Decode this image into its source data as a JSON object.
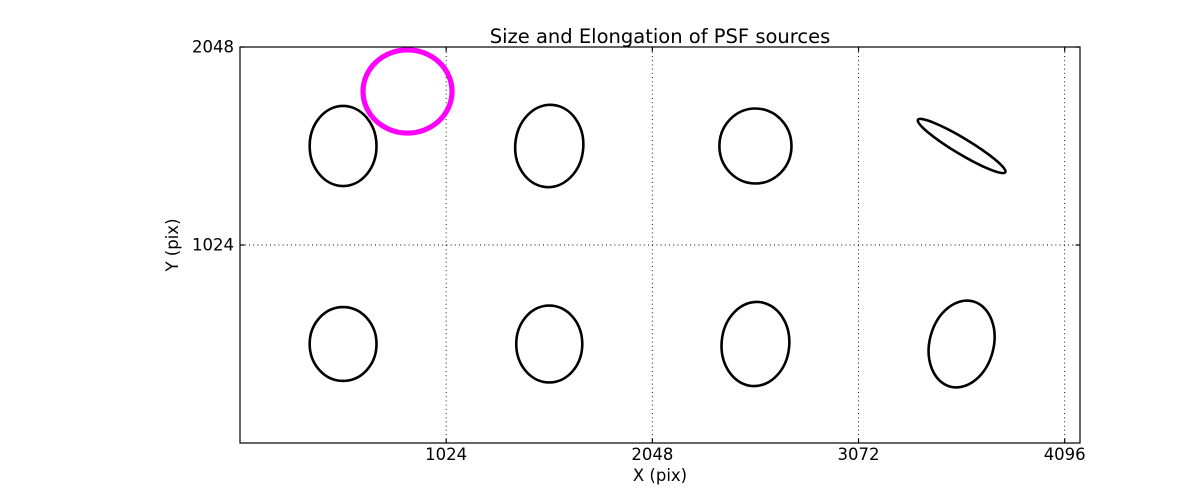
{
  "figure": {
    "background": "#ffffff",
    "text_color": "#000000"
  },
  "chart_data": {
    "type": "scatter",
    "title": "Size and Elongation of PSF sources",
    "xlabel": "X (pix)",
    "ylabel": "Y (pix)",
    "xlim": [
      0,
      4172
    ],
    "ylim": [
      0,
      2048
    ],
    "xticks": [
      1024,
      2048,
      3072,
      4096
    ],
    "yticks": [
      1024,
      2048
    ],
    "grid": "dotted",
    "legend": "none",
    "marker_style": "ellipse-glyphs",
    "ellipses": [
      {
        "name": "psf-source",
        "x": 512,
        "y": 1536,
        "a": 166,
        "b": 207,
        "angle": 0,
        "color": "#000000",
        "lw": 2.6
      },
      {
        "name": "psf-source",
        "x": 1536,
        "y": 1536,
        "a": 169,
        "b": 213,
        "angle": -5,
        "color": "#000000",
        "lw": 2.6
      },
      {
        "name": "psf-source",
        "x": 2560,
        "y": 1536,
        "a": 179,
        "b": 194,
        "angle": 0,
        "color": "#000000",
        "lw": 2.6
      },
      {
        "name": "psf-source",
        "x": 3584,
        "y": 1536,
        "a": 253,
        "b": 41,
        "angle": -31,
        "color": "#000000",
        "lw": 2.6
      },
      {
        "name": "psf-source",
        "x": 512,
        "y": 512,
        "a": 166,
        "b": 191,
        "angle": 0,
        "color": "#000000",
        "lw": 2.6
      },
      {
        "name": "psf-source",
        "x": 1536,
        "y": 512,
        "a": 164,
        "b": 199,
        "angle": 0,
        "color": "#000000",
        "lw": 2.6
      },
      {
        "name": "psf-source",
        "x": 2560,
        "y": 512,
        "a": 168,
        "b": 218,
        "angle": -5,
        "color": "#000000",
        "lw": 2.6
      },
      {
        "name": "psf-source",
        "x": 3584,
        "y": 512,
        "a": 159,
        "b": 228,
        "angle": -15,
        "color": "#000000",
        "lw": 2.6
      },
      {
        "name": "flagged-source",
        "x": 832,
        "y": 1818,
        "a": 221,
        "b": 215,
        "angle": 0,
        "color": "#FF00FF",
        "lw": 5.2
      }
    ],
    "colors": {
      "normal_source": "#000000",
      "flagged_source": "#FF00FF",
      "axes": "#000000",
      "background": "#ffffff"
    }
  }
}
